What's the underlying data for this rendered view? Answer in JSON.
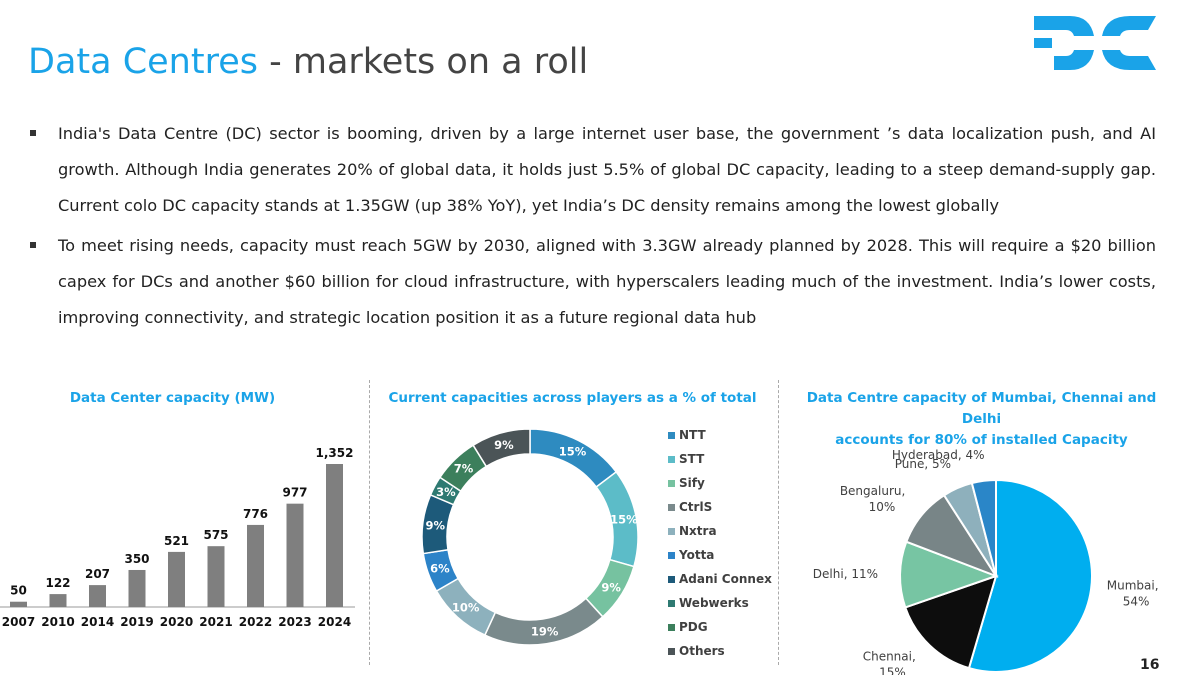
{
  "page": {
    "title_part1": "Data Centres",
    "title_part2": " - markets on a roll",
    "logo_text": "DC",
    "page_number": "16",
    "bullets": [
      "India's Data Centre (DC) sector is booming, driven by a large internet user base, the government ’s data localization push, and AI growth. Although India generates 20% of global data, it holds just 5.5% of global DC capacity, leading to a steep demand-supply gap. Current colo DC capacity stands at 1.35GW (up 38% YoY), yet India’s DC density remains among the lowest globally",
      "To meet rising needs, capacity must reach 5GW by 2030, aligned with 3.3GW already planned by 2028. This will require a $20 billion capex for DCs and another $60 billion for cloud infrastructure, with hyperscalers leading much of the investment. India’s lower costs, improving connectivity, and strategic location position it as a future regional data hub"
    ],
    "colors": {
      "accent": "#1aa3e8",
      "bar": "#7f7f7f"
    }
  },
  "chart_data": [
    {
      "type": "bar",
      "title": "Data Center capacity (MW)",
      "categories": [
        "2007",
        "2010",
        "2014",
        "2019",
        "2020",
        "2021",
        "2022",
        "2023",
        "2024"
      ],
      "values": [
        50,
        122,
        207,
        350,
        521,
        575,
        776,
        977,
        1352
      ],
      "value_labels": [
        "50",
        "122",
        "207",
        "350",
        "521",
        "575",
        "776",
        "977",
        "1,352"
      ],
      "ylim": [
        0,
        1352
      ],
      "grid": false,
      "color": "#7f7f7f"
    },
    {
      "type": "pie",
      "subtype": "donut",
      "title": "Current capacities across players as a % of total",
      "legend_position": "right",
      "slices": [
        {
          "label": "NTT",
          "value": 15,
          "text": "15%",
          "color": "#2e8bc0"
        },
        {
          "label": "STT",
          "value": 15,
          "text": "15%",
          "color": "#5cbcc8"
        },
        {
          "label": "Sify",
          "value": 9,
          "text": "9%",
          "color": "#76c2a0"
        },
        {
          "label": "CtrlS",
          "value": 19,
          "text": "19%",
          "color": "#7a8a8c"
        },
        {
          "label": "Nxtra",
          "value": 10,
          "text": "10%",
          "color": "#8db1bd"
        },
        {
          "label": "Yotta",
          "value": 6,
          "text": "6%",
          "color": "#2c83c8"
        },
        {
          "label": "Adani Connex",
          "value": 9,
          "text": "9%",
          "color": "#1d5a7a"
        },
        {
          "label": "Webwerks",
          "value": 3,
          "text": "3%",
          "color": "#2e7a72"
        },
        {
          "label": "PDG",
          "value": 7,
          "text": "7%",
          "color": "#3c7f5c"
        },
        {
          "label": "Others",
          "value": 9,
          "text": "9%",
          "color": "#4b5457"
        }
      ]
    },
    {
      "type": "pie",
      "title_lines": [
        "Data Centre capacity of Mumbai, Chennai and Delhi",
        "accounts for 80% of installed Capacity"
      ],
      "slices": [
        {
          "label": "Mumbai,",
          "text": "54%",
          "value": 54,
          "color": "#00aeef"
        },
        {
          "label": "Chennai,",
          "text": "15%",
          "value": 15,
          "color": "#0d0d0d"
        },
        {
          "label": "Delhi, 11%",
          "text": "",
          "value": 11,
          "color": "#77c5a3"
        },
        {
          "label": "Bengaluru,",
          "text": "10%",
          "value": 10,
          "color": "#788587"
        },
        {
          "label": "Pune, 5%",
          "text": "",
          "value": 5,
          "color": "#8eb0bc"
        },
        {
          "label": "Hyderabad, 4%",
          "text": "",
          "value": 4,
          "color": "#2a86c8"
        }
      ]
    }
  ]
}
